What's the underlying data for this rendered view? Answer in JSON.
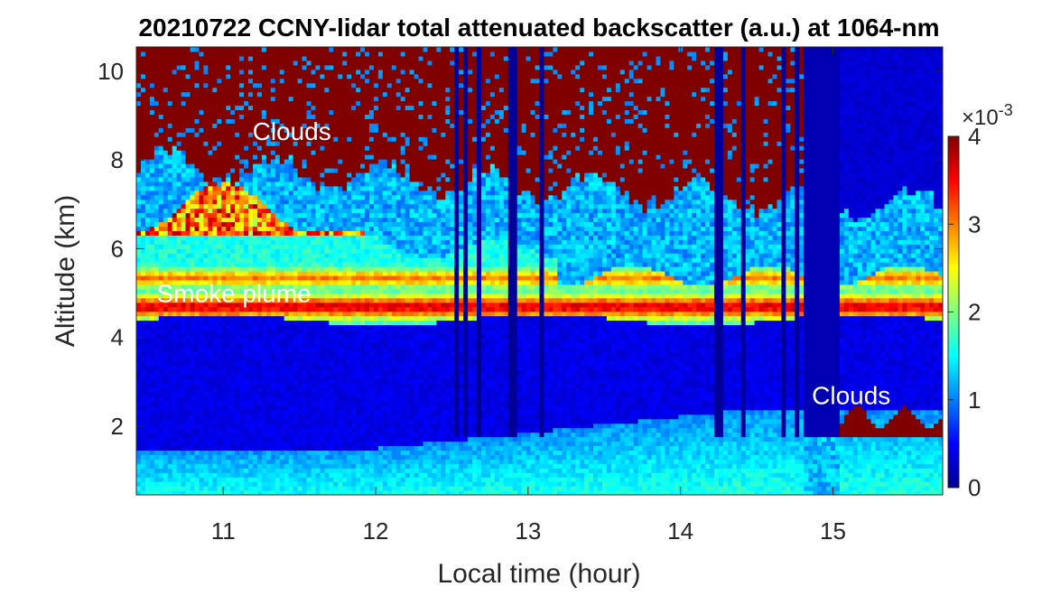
{
  "chart_data": {
    "type": "heatmap",
    "title": "20210722 CCNY-lidar total attenuated backscatter (a.u.) at 1064-nm",
    "xlabel": "Local time (hour)",
    "ylabel": "Altitude (km)",
    "xlim": [
      10.43,
      15.72
    ],
    "ylim": [
      0.45,
      10.55
    ],
    "x_ticks": [
      11,
      12,
      13,
      14,
      15
    ],
    "y_ticks": [
      2,
      4,
      6,
      8,
      10
    ],
    "colorbar": {
      "colormap": "jet",
      "min": 0,
      "max": 4,
      "ticks": [
        0,
        1,
        2,
        3,
        4
      ],
      "exponent_label": "×10",
      "exponent": "-3"
    },
    "annotations": [
      {
        "text": "Clouds",
        "x": 11.45,
        "y": 8.45
      },
      {
        "text": "Smoke plume",
        "x": 11.07,
        "y": 4.8
      },
      {
        "text": "Clouds",
        "x": 15.12,
        "y": 2.5
      }
    ],
    "features": {
      "smoke_plume_km": [
        4.4,
        7.4
      ],
      "upper_cloud_base_km": [
        6.6,
        8.3
      ],
      "boundary_layer_top_km": [
        1.5,
        2.5
      ],
      "low_cloud_km": [
        1.7,
        2.6
      ]
    }
  },
  "colors": {
    "c0": "#00008f",
    "c1": "#0000ff",
    "c2": "#00ffff",
    "c3": "#ffff00",
    "c4": "#ff0000",
    "c5": "#800000"
  }
}
